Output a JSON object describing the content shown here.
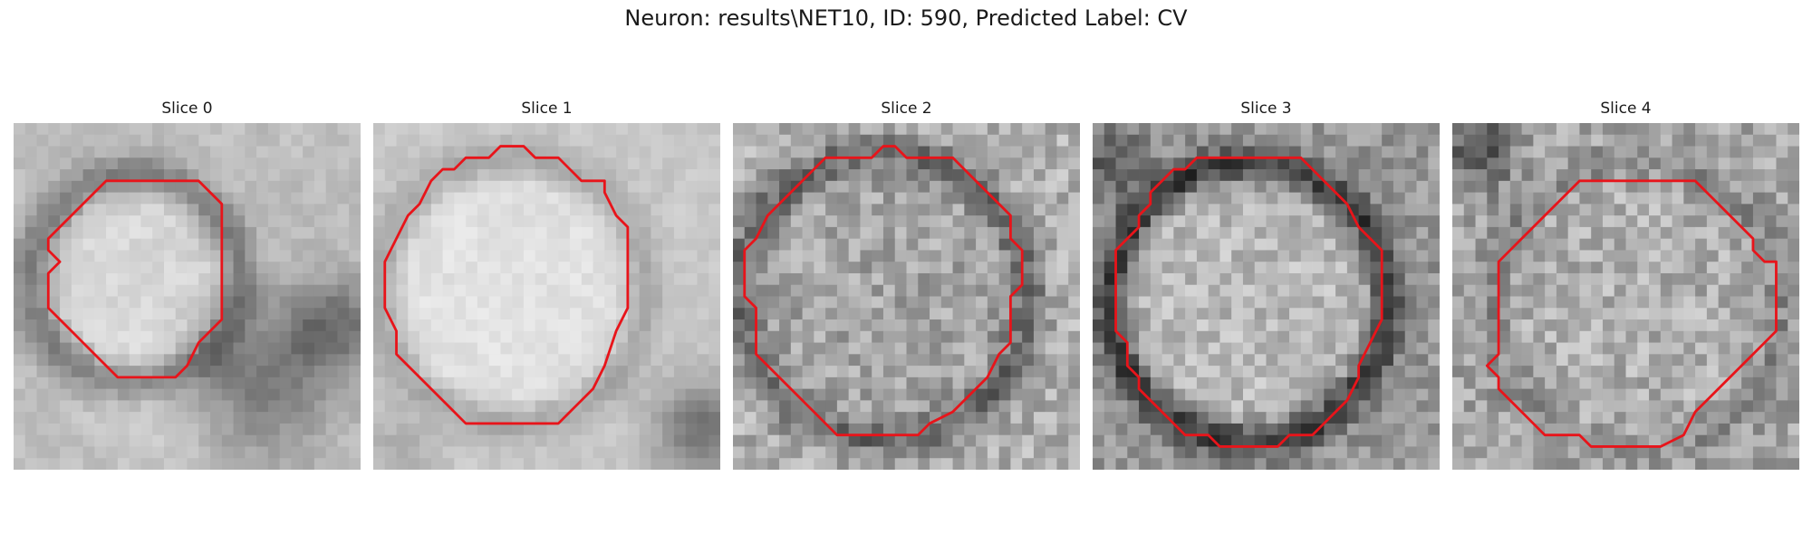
{
  "figure": {
    "title": "Neuron: results\\NET10, ID: 590, Predicted Label: CV",
    "contour_color": "#e8141a"
  },
  "panels": [
    {
      "title": "Slice 0",
      "contour": [
        [
          8,
          5
        ],
        [
          16,
          5
        ],
        [
          18,
          7
        ],
        [
          18,
          17
        ],
        [
          16,
          19
        ],
        [
          15,
          21
        ],
        [
          14,
          22
        ],
        [
          13,
          22
        ],
        [
          9,
          22
        ],
        [
          8,
          21
        ],
        [
          7,
          20
        ],
        [
          6,
          19
        ],
        [
          5,
          18
        ],
        [
          4,
          17
        ],
        [
          3,
          16
        ],
        [
          3,
          13
        ],
        [
          4,
          12
        ],
        [
          3,
          11
        ],
        [
          3,
          10
        ],
        [
          4,
          9
        ],
        [
          5,
          8
        ],
        [
          6,
          7
        ],
        [
          7,
          6
        ]
      ]
    },
    {
      "title": "Slice 1",
      "contour": [
        [
          11,
          2
        ],
        [
          13,
          2
        ],
        [
          14,
          3
        ],
        [
          16,
          3
        ],
        [
          17,
          4
        ],
        [
          18,
          5
        ],
        [
          19,
          5
        ],
        [
          20,
          5
        ],
        [
          20,
          6
        ],
        [
          21,
          8
        ],
        [
          22,
          9
        ],
        [
          22,
          10
        ],
        [
          22,
          13
        ],
        [
          22,
          16
        ],
        [
          21,
          18
        ],
        [
          20,
          21
        ],
        [
          19,
          23
        ],
        [
          17,
          25
        ],
        [
          16,
          26
        ],
        [
          8,
          26
        ],
        [
          7,
          25
        ],
        [
          6,
          24
        ],
        [
          5,
          23
        ],
        [
          4,
          22
        ],
        [
          3,
          21
        ],
        [
          2,
          20
        ],
        [
          2,
          18
        ],
        [
          1,
          16
        ],
        [
          1,
          12
        ],
        [
          2,
          10
        ],
        [
          3,
          8
        ],
        [
          4,
          7
        ],
        [
          5,
          5
        ],
        [
          6,
          4
        ],
        [
          7,
          4
        ],
        [
          8,
          3
        ],
        [
          10,
          3
        ]
      ]
    },
    {
      "title": "Slice 2",
      "contour": [
        [
          13,
          2
        ],
        [
          14,
          2
        ],
        [
          15,
          3
        ],
        [
          19,
          3
        ],
        [
          20,
          4
        ],
        [
          21,
          5
        ],
        [
          22,
          6
        ],
        [
          23,
          7
        ],
        [
          24,
          8
        ],
        [
          24,
          10
        ],
        [
          25,
          11
        ],
        [
          25,
          14
        ],
        [
          24,
          15
        ],
        [
          24,
          19
        ],
        [
          23,
          20
        ],
        [
          22,
          22
        ],
        [
          21,
          23
        ],
        [
          20,
          24
        ],
        [
          19,
          25
        ],
        [
          17,
          26
        ],
        [
          16,
          27
        ],
        [
          9,
          27
        ],
        [
          8,
          26
        ],
        [
          7,
          25
        ],
        [
          6,
          24
        ],
        [
          5,
          23
        ],
        [
          4,
          22
        ],
        [
          3,
          21
        ],
        [
          2,
          20
        ],
        [
          2,
          19
        ],
        [
          2,
          16
        ],
        [
          1,
          15
        ],
        [
          1,
          11
        ],
        [
          2,
          10
        ],
        [
          3,
          8
        ],
        [
          4,
          7
        ],
        [
          5,
          6
        ],
        [
          6,
          5
        ],
        [
          7,
          4
        ],
        [
          8,
          3
        ],
        [
          12,
          3
        ]
      ]
    },
    {
      "title": "Slice 3",
      "contour": [
        [
          9,
          3
        ],
        [
          18,
          3
        ],
        [
          19,
          4
        ],
        [
          20,
          5
        ],
        [
          21,
          6
        ],
        [
          22,
          7
        ],
        [
          23,
          9
        ],
        [
          24,
          10
        ],
        [
          25,
          11
        ],
        [
          25,
          17
        ],
        [
          24,
          19
        ],
        [
          23,
          21
        ],
        [
          23,
          22
        ],
        [
          22,
          24
        ],
        [
          21,
          25
        ],
        [
          20,
          26
        ],
        [
          19,
          27
        ],
        [
          17,
          27
        ],
        [
          16,
          28
        ],
        [
          11,
          28
        ],
        [
          10,
          27
        ],
        [
          8,
          27
        ],
        [
          7,
          26
        ],
        [
          6,
          25
        ],
        [
          5,
          24
        ],
        [
          4,
          23
        ],
        [
          4,
          22
        ],
        [
          3,
          21
        ],
        [
          3,
          19
        ],
        [
          2,
          18
        ],
        [
          2,
          11
        ],
        [
          3,
          10
        ],
        [
          4,
          9
        ],
        [
          4,
          8
        ],
        [
          5,
          7
        ],
        [
          5,
          6
        ],
        [
          6,
          5
        ],
        [
          7,
          4
        ],
        [
          8,
          4
        ]
      ]
    },
    {
      "title": "Slice 4",
      "contour": [
        [
          11,
          5
        ],
        [
          21,
          5
        ],
        [
          22,
          6
        ],
        [
          23,
          7
        ],
        [
          24,
          8
        ],
        [
          25,
          9
        ],
        [
          26,
          10
        ],
        [
          26,
          11
        ],
        [
          27,
          12
        ],
        [
          28,
          12
        ],
        [
          28,
          14
        ],
        [
          28,
          18
        ],
        [
          27,
          19
        ],
        [
          26,
          20
        ],
        [
          25,
          21
        ],
        [
          24,
          22
        ],
        [
          23,
          23
        ],
        [
          22,
          24
        ],
        [
          21,
          25
        ],
        [
          20,
          27
        ],
        [
          18,
          28
        ],
        [
          12,
          28
        ],
        [
          11,
          27
        ],
        [
          8,
          27
        ],
        [
          7,
          26
        ],
        [
          6,
          25
        ],
        [
          5,
          24
        ],
        [
          4,
          23
        ],
        [
          4,
          22
        ],
        [
          3,
          21
        ],
        [
          4,
          20
        ],
        [
          4,
          12
        ],
        [
          5,
          11
        ],
        [
          6,
          10
        ],
        [
          7,
          9
        ],
        [
          8,
          8
        ],
        [
          9,
          7
        ],
        [
          10,
          6
        ]
      ]
    }
  ]
}
